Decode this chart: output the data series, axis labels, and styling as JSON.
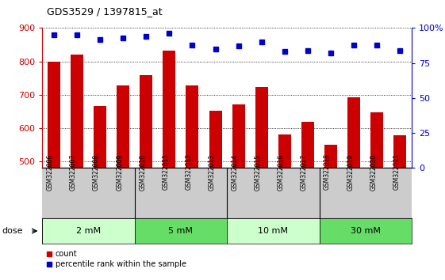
{
  "title": "GDS3529 / 1397815_at",
  "categories": [
    "GSM322006",
    "GSM322007",
    "GSM322008",
    "GSM322009",
    "GSM322010",
    "GSM322011",
    "GSM322012",
    "GSM322013",
    "GSM322014",
    "GSM322015",
    "GSM322016",
    "GSM322017",
    "GSM322018",
    "GSM322019",
    "GSM322020",
    "GSM322021"
  ],
  "bar_values": [
    800,
    820,
    665,
    728,
    758,
    832,
    728,
    652,
    670,
    724,
    580,
    618,
    549,
    692,
    648,
    578
  ],
  "bar_color": "#cc0000",
  "dot_values_pct": [
    95,
    95,
    92,
    93,
    94,
    96,
    88,
    85,
    87,
    90,
    83,
    84,
    82,
    88,
    88,
    84
  ],
  "dot_color": "#0000cc",
  "ylim_left": [
    480,
    900
  ],
  "ylim_right": [
    0,
    100
  ],
  "yticks_left": [
    500,
    600,
    700,
    800,
    900
  ],
  "yticks_right": [
    0,
    25,
    50,
    75,
    100
  ],
  "yticklabels_right": [
    "0",
    "25",
    "50",
    "75",
    "100%"
  ],
  "dose_groups": [
    {
      "label": "2 mM",
      "start": 0,
      "end": 4,
      "color": "#ccffcc"
    },
    {
      "label": "5 mM",
      "start": 4,
      "end": 8,
      "color": "#66dd66"
    },
    {
      "label": "10 mM",
      "start": 8,
      "end": 12,
      "color": "#ccffcc"
    },
    {
      "label": "30 mM",
      "start": 12,
      "end": 16,
      "color": "#66dd66"
    }
  ],
  "bar_width": 0.55,
  "grid_color": "#000000",
  "tick_color_left": "#cc0000",
  "tick_color_right": "#0000cc",
  "bg_xticklabels": "#cccccc",
  "legend_count_label": "count",
  "legend_pct_label": "percentile rank within the sample",
  "dose_label": "dose"
}
